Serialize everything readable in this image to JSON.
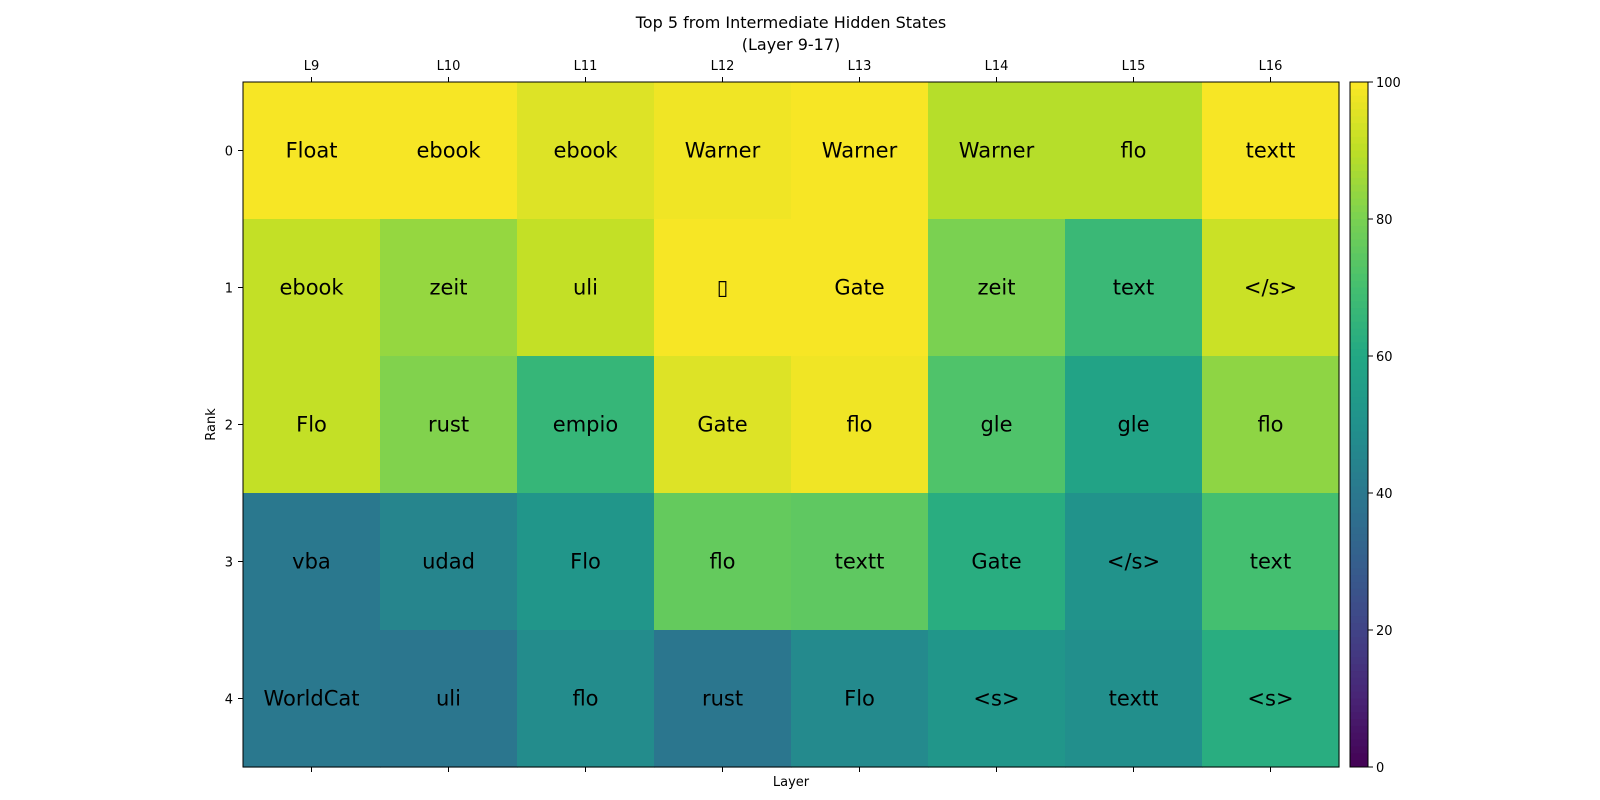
{
  "chart_data": {
    "type": "heatmap",
    "title": "Top 5 from Intermediate Hidden States",
    "subtitle": "(Layer 9-17)",
    "xlabel": "Layer",
    "ylabel": "Rank",
    "x_tick_labels": [
      "L9",
      "L10",
      "L11",
      "L12",
      "L13",
      "L14",
      "L15",
      "L16"
    ],
    "y_tick_labels": [
      "0",
      "1",
      "2",
      "3",
      "4"
    ],
    "tokens": [
      [
        "Float",
        "ebook",
        "ebook",
        "Warner",
        "Warner",
        "Warner",
        "flo",
        "textt"
      ],
      [
        "ebook",
        "zeit",
        "uli",
        "▯",
        "Gate",
        "zeit",
        "text",
        "</s>"
      ],
      [
        "Flo",
        "rust",
        "empio",
        "Gate",
        "flo",
        "gle",
        "gle",
        "flo"
      ],
      [
        "vba",
        "udad",
        "Flo",
        "flo",
        "textt",
        "Gate",
        "</s>",
        "text"
      ],
      [
        "WorldCat",
        "uli",
        "flo",
        "rust",
        "Flo",
        "<s>",
        "textt",
        "<s>"
      ]
    ],
    "values": [
      [
        99,
        99,
        95,
        98,
        99,
        89,
        89,
        99
      ],
      [
        91,
        84,
        91,
        99,
        99,
        80,
        67,
        92
      ],
      [
        91,
        81,
        66,
        95,
        98,
        72,
        58,
        83
      ],
      [
        40,
        45,
        52,
        76,
        75,
        62,
        51,
        70
      ],
      [
        40,
        39,
        48,
        39,
        47,
        52,
        49,
        62
      ]
    ],
    "colorbar": {
      "range": [
        0,
        100
      ],
      "tick_labels": [
        "0",
        "20",
        "40",
        "60",
        "80",
        "100"
      ],
      "colormap": "viridis"
    }
  }
}
